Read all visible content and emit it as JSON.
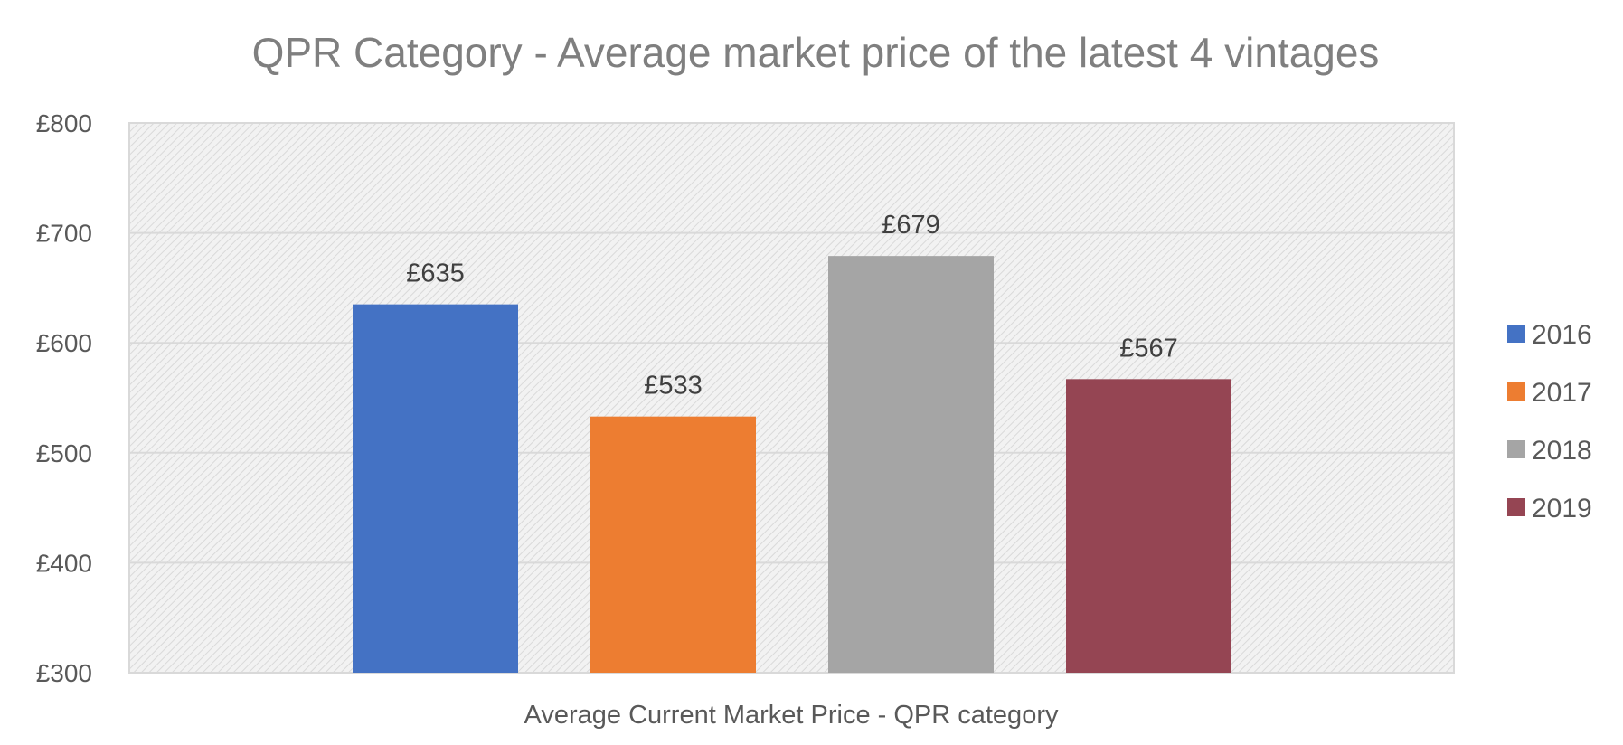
{
  "chart_data": {
    "type": "bar",
    "title": "QPR Category - Average market price  of the latest 4 vintages",
    "xlabel": "Average Current Market Price - QPR category",
    "ylabel": "",
    "categories": [
      "Average Current Market Price - QPR category"
    ],
    "series": [
      {
        "name": "2016",
        "values": [
          635
        ],
        "color": "#4472c4",
        "label": "£635"
      },
      {
        "name": "2017",
        "values": [
          533
        ],
        "color": "#ed7d31",
        "label": "£533"
      },
      {
        "name": "2018",
        "values": [
          679
        ],
        "color": "#a5a5a5",
        "label": "£679"
      },
      {
        "name": "2019",
        "values": [
          567
        ],
        "color": "#954553",
        "label": "£567"
      }
    ],
    "ylim": [
      300,
      800
    ],
    "yticks": [
      300,
      400,
      500,
      600,
      700,
      800
    ],
    "ytick_labels": [
      "£300",
      "£400",
      "£500",
      "£600",
      "£700",
      "£800"
    ],
    "grid": true,
    "legend": "right",
    "plot_background": "hatched light grey"
  }
}
